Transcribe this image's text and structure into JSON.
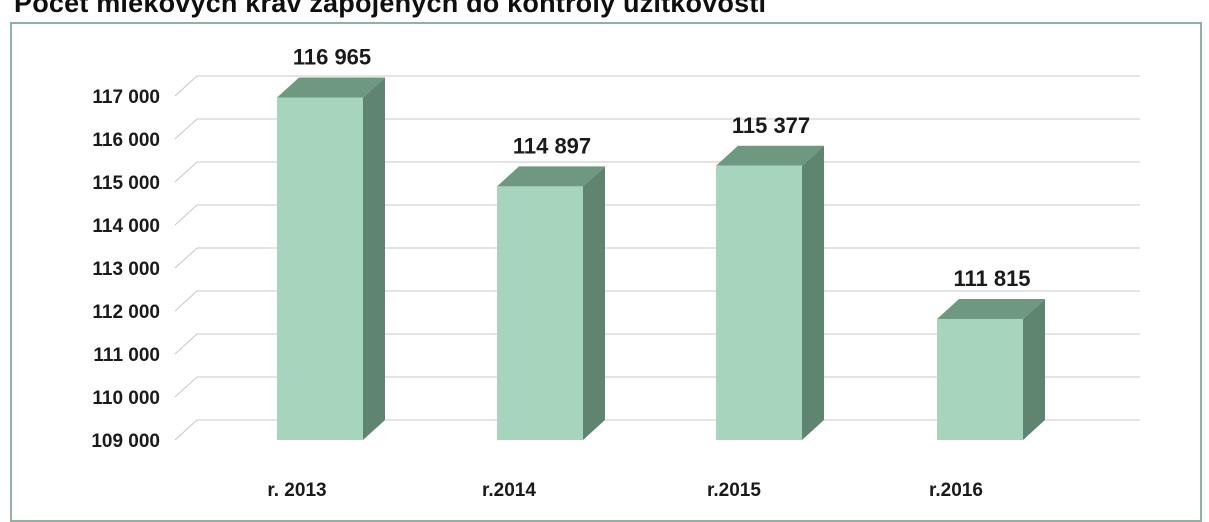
{
  "chart_data": {
    "type": "bar",
    "title": "Počet mlékových krav zapojených do kontroly užitkovosti",
    "categories": [
      "r. 2013",
      "r.2014",
      "r.2015",
      "r.2016"
    ],
    "values": [
      116965,
      114897,
      115377,
      111815
    ],
    "data_labels": [
      "116 965",
      "114 897",
      "115 377",
      "111 815"
    ],
    "ylim": [
      109000,
      117000
    ],
    "y_ticks": [
      109000,
      110000,
      111000,
      112000,
      113000,
      114000,
      115000,
      116000,
      117000
    ],
    "y_tick_labels": [
      "109 000",
      "110 000",
      "111 000",
      "112 000",
      "113 000",
      "114 000",
      "115 000",
      "116 000",
      "117 000"
    ],
    "grid": true,
    "style": "3d-column",
    "colors": {
      "front": "#a7d4bd",
      "side": "#5f8470",
      "top": "#6f9880",
      "grid": "#c8c8c8"
    }
  }
}
